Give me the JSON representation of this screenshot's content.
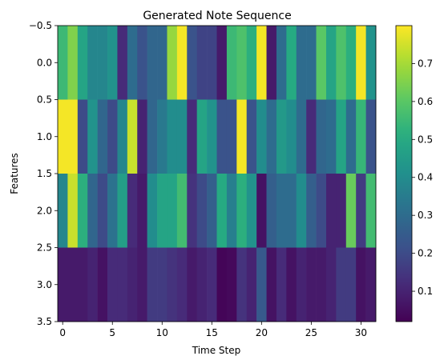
{
  "chart_data": {
    "type": "heatmap",
    "title": "Generated Note Sequence",
    "xlabel": "Time Step",
    "ylabel": "Features",
    "colormap": "viridis",
    "x_ticks": [
      0,
      5,
      10,
      15,
      20,
      25,
      30
    ],
    "y_ticks": [
      -0.5,
      0.0,
      0.5,
      1.0,
      1.5,
      2.0,
      2.5,
      3.0,
      3.5
    ],
    "y_tick_labels": [
      "−0.5",
      "0.0",
      "0.5",
      "1.0",
      "1.5",
      "2.0",
      "2.5",
      "3.0",
      "3.5"
    ],
    "colorbar_ticks": [
      0.1,
      0.2,
      0.3,
      0.4,
      0.5,
      0.6,
      0.7
    ],
    "value_range": [
      0.02,
      0.8
    ],
    "xlim": [
      -0.5,
      31.5
    ],
    "ylim": [
      3.5,
      -0.5
    ],
    "values": [
      [
        0.55,
        0.65,
        0.48,
        0.38,
        0.38,
        0.42,
        0.12,
        0.3,
        0.22,
        0.28,
        0.28,
        0.68,
        0.79,
        0.22,
        0.18,
        0.18,
        0.08,
        0.55,
        0.58,
        0.52,
        0.79,
        0.08,
        0.3,
        0.5,
        0.3,
        0.3,
        0.6,
        0.48,
        0.58,
        0.52,
        0.79,
        0.42
      ],
      [
        0.79,
        0.79,
        0.2,
        0.42,
        0.28,
        0.2,
        0.38,
        0.74,
        0.1,
        0.28,
        0.34,
        0.4,
        0.4,
        0.12,
        0.48,
        0.42,
        0.22,
        0.22,
        0.79,
        0.22,
        0.4,
        0.3,
        0.44,
        0.4,
        0.3,
        0.12,
        0.28,
        0.3,
        0.48,
        0.3,
        0.54,
        0.22
      ],
      [
        0.38,
        0.74,
        0.52,
        0.28,
        0.2,
        0.32,
        0.46,
        0.12,
        0.08,
        0.4,
        0.48,
        0.48,
        0.56,
        0.14,
        0.2,
        0.26,
        0.5,
        0.36,
        0.52,
        0.42,
        0.06,
        0.26,
        0.3,
        0.3,
        0.4,
        0.26,
        0.2,
        0.1,
        0.1,
        0.62,
        0.16,
        0.56
      ],
      [
        0.08,
        0.08,
        0.08,
        0.1,
        0.06,
        0.12,
        0.12,
        0.1,
        0.08,
        0.16,
        0.16,
        0.14,
        0.12,
        0.08,
        0.1,
        0.12,
        0.03,
        0.04,
        0.14,
        0.1,
        0.24,
        0.06,
        0.12,
        0.06,
        0.1,
        0.08,
        0.08,
        0.1,
        0.16,
        0.16,
        0.06,
        0.08
      ]
    ]
  }
}
